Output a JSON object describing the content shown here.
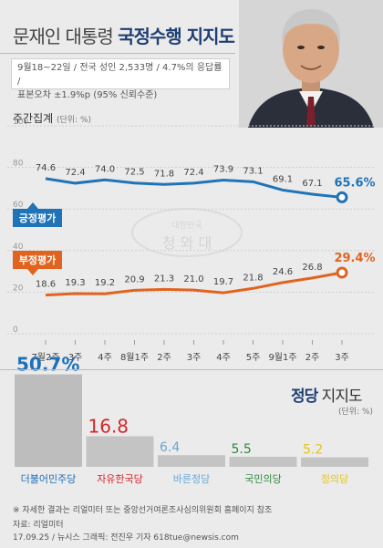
{
  "header": {
    "title_light": "문재인 대통령",
    "title_bold": "국정수행 지지도",
    "survey_line1": "9월18~22일 / 전국 성인 2,533명 / 4.7%의 응답률 /",
    "survey_line2": "표본오차 ±1.9%p (95% 신뢰수준)"
  },
  "weekly": {
    "label": "주간집계",
    "unit": "(단위: %)"
  },
  "watermark": {
    "line1": "대한민국",
    "line2": "청 와 대"
  },
  "chart_data": {
    "type": "line",
    "categories": [
      "7월2주",
      "3주",
      "4주",
      "8월1주",
      "2주",
      "3주",
      "4주",
      "5주",
      "9월1주",
      "2주",
      "3주"
    ],
    "ylim": [
      0,
      100
    ],
    "yticks": [
      "0",
      "20",
      "40",
      "60",
      "80",
      "100"
    ],
    "series": [
      {
        "name": "긍정평가",
        "values": [
          74.6,
          72.4,
          74.0,
          72.5,
          71.8,
          72.4,
          73.9,
          73.1,
          69.1,
          67.1,
          65.6
        ],
        "labels": [
          "74.6",
          "72.4",
          "74.0",
          "72.5",
          "71.8",
          "72.4",
          "73.9",
          "73.1",
          "69.1",
          "67.1",
          "65.6%"
        ],
        "color": "#1f73b7"
      },
      {
        "name": "부정평가",
        "values": [
          18.6,
          19.3,
          19.2,
          20.9,
          21.3,
          21.0,
          19.7,
          21.8,
          24.6,
          26.8,
          29.4
        ],
        "labels": [
          "18.6",
          "19.3",
          "19.2",
          "20.9",
          "21.3",
          "21.0",
          "19.7",
          "21.8",
          "24.6",
          "26.8",
          "29.4%"
        ],
        "color": "#e0641f"
      }
    ]
  },
  "party_chart": {
    "title_bold": "정당",
    "title_rest": " 지지도",
    "unit": "(단위: %)",
    "chart_data": {
      "type": "bar",
      "categories": [
        "더불어민주당",
        "자유한국당",
        "바른정당",
        "국민의당",
        "정의당"
      ],
      "values": [
        50.7,
        16.8,
        6.4,
        5.5,
        5.2
      ],
      "value_labels": [
        "50.7%",
        "16.8",
        "6.4",
        "5.5",
        "5.2"
      ],
      "colors": [
        "#1f6fb8",
        "#d7262b",
        "#64a8d8",
        "#2f8a3a",
        "#e6c417"
      ]
    }
  },
  "footer": {
    "note": "※ 자세한 결과는 리얼미터 또는 중앙선거여론조사심의위원회 홈페이지 참조",
    "source": "자료: 리얼미터",
    "credit": "17.09.25 / 뉴시스 그래픽: 전진우 기자 618tue@newsis.com"
  }
}
